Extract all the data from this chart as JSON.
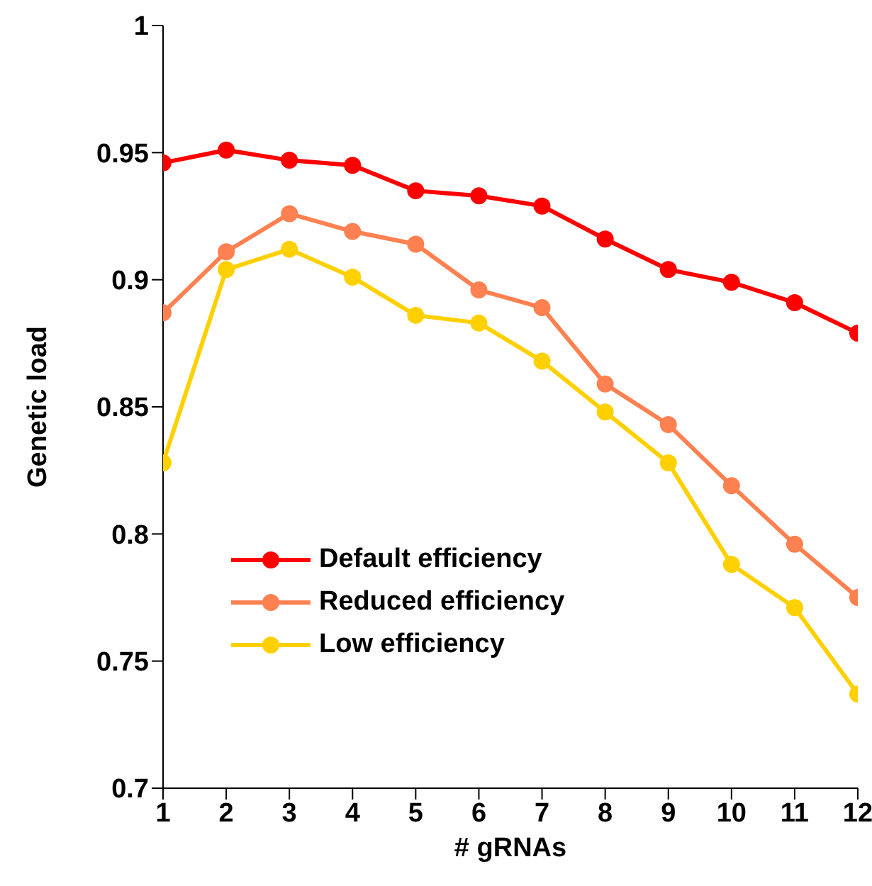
{
  "chart_data": {
    "type": "line",
    "xlabel": "# gRNAs",
    "ylabel": "Genetic load",
    "x": [
      1,
      2,
      3,
      4,
      5,
      6,
      7,
      8,
      9,
      10,
      11,
      12
    ],
    "series": [
      {
        "name": "Default efficiency",
        "color": "#ff0000",
        "values": [
          0.946,
          0.951,
          0.947,
          0.945,
          0.935,
          0.933,
          0.929,
          0.916,
          0.904,
          0.899,
          0.891,
          0.879
        ]
      },
      {
        "name": "Reduced efficiency",
        "color": "#ff8050",
        "values": [
          0.887,
          0.911,
          0.926,
          0.919,
          0.914,
          0.896,
          0.889,
          0.859,
          0.843,
          0.819,
          0.796,
          0.775
        ]
      },
      {
        "name": "Low efficiency",
        "color": "#ffd000",
        "values": [
          0.828,
          0.904,
          0.912,
          0.901,
          0.886,
          0.883,
          0.868,
          0.848,
          0.828,
          0.788,
          0.771,
          0.737
        ]
      }
    ],
    "xlim": [
      1,
      12
    ],
    "xticks": [
      1,
      2,
      3,
      4,
      5,
      6,
      7,
      8,
      9,
      10,
      11,
      12
    ],
    "ylim": [
      0.7,
      1
    ],
    "yticks": [
      0.7,
      0.75,
      0.8,
      0.85,
      0.9,
      0.95,
      1
    ],
    "grid": false,
    "legend": "bottom left",
    "marker": "circle",
    "line_style": "solid"
  }
}
